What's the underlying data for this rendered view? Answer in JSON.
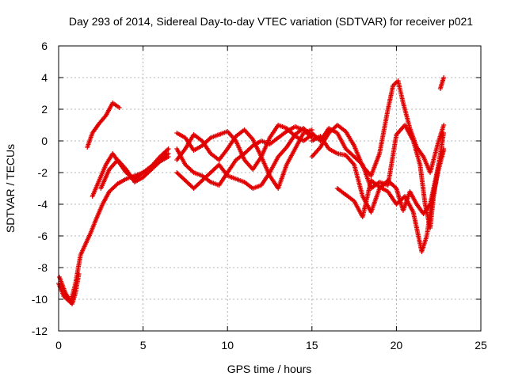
{
  "chart_data": {
    "type": "scatter",
    "title": "Day 293 of 2014, Sidereal Day-to-day VTEC variation (SDTVAR) for receiver p021",
    "xlabel": "GPS time / hours",
    "ylabel": "SDTVAR / TECUs",
    "xlim": [
      0,
      25
    ],
    "ylim": [
      -12,
      6
    ],
    "xticks": [
      0,
      5,
      10,
      15,
      20,
      25
    ],
    "yticks": [
      -12,
      -10,
      -8,
      -6,
      -4,
      -2,
      0,
      2,
      4,
      6
    ],
    "grid": true,
    "marker": "+",
    "color": "#e00000",
    "series": [
      {
        "name": "track-a",
        "points": [
          [
            0.0,
            -9.0
          ],
          [
            0.3,
            -9.8
          ],
          [
            0.7,
            -10.2
          ],
          [
            1.0,
            -9.0
          ],
          [
            1.3,
            -7.2
          ],
          [
            1.6,
            -6.5
          ],
          [
            1.9,
            -5.8
          ],
          [
            2.2,
            -5.0
          ],
          [
            2.6,
            -4.0
          ],
          [
            3.0,
            -3.2
          ],
          [
            3.5,
            -2.7
          ],
          [
            4.0,
            -2.4
          ],
          [
            4.5,
            -2.2
          ],
          [
            5.0,
            -2.0
          ],
          [
            5.5,
            -1.6
          ],
          [
            6.0,
            -1.2
          ],
          [
            6.5,
            -0.8
          ]
        ]
      },
      {
        "name": "track-b",
        "points": [
          [
            0.05,
            -8.6
          ],
          [
            0.4,
            -9.6
          ],
          [
            0.8,
            -10.3
          ],
          [
            1.0,
            -9.6
          ],
          [
            1.2,
            -8.4
          ]
        ]
      },
      {
        "name": "track-c",
        "points": [
          [
            1.7,
            -0.4
          ],
          [
            2.0,
            0.5
          ],
          [
            2.4,
            1.1
          ],
          [
            2.8,
            1.6
          ],
          [
            3.2,
            2.4
          ],
          [
            3.6,
            2.1
          ]
        ]
      },
      {
        "name": "track-d",
        "points": [
          [
            2.0,
            -3.5
          ],
          [
            2.4,
            -2.5
          ],
          [
            2.8,
            -1.5
          ],
          [
            3.2,
            -0.8
          ],
          [
            3.6,
            -1.4
          ],
          [
            4.0,
            -2.0
          ],
          [
            4.5,
            -2.4
          ],
          [
            5.0,
            -2.0
          ],
          [
            5.5,
            -1.6
          ],
          [
            6.0,
            -1.0
          ],
          [
            6.5,
            -0.5
          ]
        ]
      },
      {
        "name": "track-e",
        "points": [
          [
            2.5,
            -3.0
          ],
          [
            3.0,
            -1.8
          ],
          [
            3.5,
            -1.2
          ],
          [
            4.0,
            -1.8
          ],
          [
            4.5,
            -2.6
          ],
          [
            5.0,
            -2.3
          ],
          [
            5.5,
            -1.8
          ],
          [
            6.0,
            -1.3
          ],
          [
            6.5,
            -1.0
          ]
        ]
      },
      {
        "name": "track-f",
        "points": [
          [
            7.0,
            0.5
          ],
          [
            7.5,
            0.2
          ],
          [
            8.0,
            -0.6
          ],
          [
            8.5,
            -0.3
          ],
          [
            9.0,
            0.2
          ],
          [
            9.5,
            0.4
          ],
          [
            10.0,
            0.6
          ],
          [
            10.5,
            0.0
          ],
          [
            11.0,
            -1.2
          ],
          [
            11.5,
            -1.8
          ],
          [
            12.0,
            -1.0
          ],
          [
            12.5,
            0.2
          ],
          [
            13.0,
            1.0
          ],
          [
            13.5,
            0.8
          ],
          [
            14.0,
            0.3
          ],
          [
            14.5,
            0.0
          ],
          [
            15.0,
            0.4
          ]
        ]
      },
      {
        "name": "track-g",
        "points": [
          [
            7.0,
            -1.2
          ],
          [
            7.5,
            -0.5
          ],
          [
            8.0,
            0.4
          ],
          [
            8.5,
            0.0
          ],
          [
            9.0,
            -0.8
          ],
          [
            9.5,
            -1.2
          ],
          [
            10.0,
            -0.5
          ],
          [
            10.5,
            0.3
          ],
          [
            11.0,
            0.7
          ],
          [
            11.5,
            0.1
          ],
          [
            12.0,
            -1.0
          ],
          [
            12.5,
            -2.2
          ],
          [
            13.0,
            -3.0
          ],
          [
            13.5,
            -1.5
          ],
          [
            14.0,
            -0.5
          ],
          [
            14.5,
            0.5
          ],
          [
            15.0,
            0.7
          ]
        ]
      },
      {
        "name": "track-h",
        "points": [
          [
            7.0,
            -2.0
          ],
          [
            7.5,
            -2.5
          ],
          [
            8.0,
            -3.0
          ],
          [
            8.5,
            -2.5
          ],
          [
            9.0,
            -2.0
          ],
          [
            9.5,
            -1.5
          ],
          [
            10.0,
            -2.2
          ],
          [
            10.5,
            -2.4
          ],
          [
            11.0,
            -2.6
          ],
          [
            11.5,
            -3.0
          ],
          [
            12.0,
            -2.8
          ],
          [
            12.5,
            -2.0
          ],
          [
            13.0,
            -1.0
          ],
          [
            13.5,
            -0.4
          ],
          [
            14.0,
            0.4
          ],
          [
            14.5,
            0.8
          ],
          [
            15.0,
            0.3
          ]
        ]
      },
      {
        "name": "track-i",
        "points": [
          [
            7.0,
            -0.5
          ],
          [
            7.5,
            -1.5
          ],
          [
            8.0,
            -2.0
          ],
          [
            8.5,
            -2.2
          ],
          [
            9.0,
            -2.6
          ],
          [
            9.5,
            -2.8
          ],
          [
            10.0,
            -2.0
          ],
          [
            10.5,
            -1.2
          ],
          [
            11.0,
            -0.8
          ],
          [
            11.5,
            -0.3
          ],
          [
            12.0,
            0.0
          ],
          [
            12.5,
            -0.2
          ],
          [
            13.0,
            0.2
          ],
          [
            13.5,
            0.6
          ],
          [
            14.0,
            0.9
          ],
          [
            14.5,
            0.7
          ],
          [
            15.0,
            0.2
          ]
        ]
      },
      {
        "name": "track-j",
        "points": [
          [
            15.0,
            -1.0
          ],
          [
            15.5,
            -0.4
          ],
          [
            16.0,
            0.5
          ],
          [
            16.5,
            1.0
          ],
          [
            17.0,
            0.6
          ],
          [
            17.5,
            -0.3
          ],
          [
            18.0,
            -1.6
          ],
          [
            18.5,
            -2.2
          ],
          [
            19.0,
            -0.8
          ],
          [
            19.5,
            2.0
          ],
          [
            19.8,
            3.5
          ],
          [
            20.1,
            3.8
          ],
          [
            20.4,
            2.4
          ],
          [
            20.8,
            0.8
          ],
          [
            21.2,
            -0.4
          ],
          [
            21.6,
            -1.0
          ],
          [
            22.0,
            -2.0
          ],
          [
            22.5,
            0.0
          ],
          [
            22.8,
            1.0
          ]
        ]
      },
      {
        "name": "track-k",
        "points": [
          [
            15.0,
            0.0
          ],
          [
            15.5,
            0.3
          ],
          [
            16.0,
            -0.5
          ],
          [
            16.5,
            -0.8
          ],
          [
            17.0,
            -0.9
          ],
          [
            17.5,
            -1.5
          ],
          [
            18.0,
            -3.5
          ],
          [
            18.5,
            -4.5
          ],
          [
            19.0,
            -3.0
          ],
          [
            19.5,
            -2.5
          ],
          [
            20.0,
            -3.0
          ],
          [
            20.4,
            -4.4
          ],
          [
            20.8,
            -3.2
          ],
          [
            21.2,
            -4.0
          ],
          [
            21.6,
            -4.6
          ],
          [
            22.0,
            -4.0
          ],
          [
            22.5,
            -1.5
          ],
          [
            22.8,
            -0.5
          ]
        ]
      },
      {
        "name": "track-l",
        "points": [
          [
            15.0,
            0.5
          ],
          [
            15.5,
            0.0
          ],
          [
            16.0,
            0.8
          ],
          [
            16.5,
            0.5
          ],
          [
            17.0,
            -0.5
          ],
          [
            17.5,
            -1.0
          ],
          [
            18.0,
            -1.5
          ],
          [
            18.5,
            -3.0
          ],
          [
            19.0,
            -2.6
          ],
          [
            19.5,
            -2.8
          ],
          [
            20.0,
            0.4
          ],
          [
            20.5,
            1.0
          ],
          [
            21.0,
            0.0
          ],
          [
            21.4,
            -1.5
          ],
          [
            21.7,
            -4.0
          ],
          [
            22.0,
            -5.5
          ],
          [
            22.2,
            -3.5
          ],
          [
            22.5,
            -1.5
          ],
          [
            22.8,
            0.5
          ]
        ]
      },
      {
        "name": "track-m",
        "points": [
          [
            16.5,
            -3.0
          ],
          [
            17.0,
            -3.4
          ],
          [
            17.5,
            -3.8
          ],
          [
            18.0,
            -4.8
          ],
          [
            18.5,
            -2.5
          ],
          [
            19.0,
            -2.9
          ],
          [
            19.5,
            -3.2
          ],
          [
            20.0,
            -4.0
          ],
          [
            20.5,
            -3.5
          ],
          [
            21.0,
            -4.5
          ],
          [
            21.5,
            -7.0
          ],
          [
            21.8,
            -6.0
          ],
          [
            22.1,
            -3.8
          ],
          [
            22.5,
            -1.8
          ],
          [
            22.8,
            -0.6
          ]
        ]
      },
      {
        "name": "track-n",
        "points": [
          [
            22.6,
            3.3
          ],
          [
            22.8,
            4.0
          ]
        ]
      }
    ]
  }
}
